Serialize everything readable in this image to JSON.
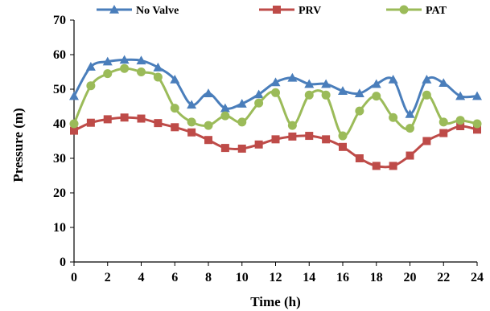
{
  "chart_data": {
    "type": "line",
    "title": "",
    "xlabel": "Time (h)",
    "ylabel": "Pressure (m)",
    "xlim": [
      0,
      24
    ],
    "ylim": [
      0,
      70
    ],
    "x_ticks": [
      0,
      2,
      4,
      6,
      8,
      10,
      12,
      14,
      16,
      18,
      20,
      22,
      24
    ],
    "y_ticks": [
      0,
      10,
      20,
      30,
      40,
      50,
      60,
      70
    ],
    "x": [
      0,
      1,
      2,
      3,
      4,
      5,
      6,
      7,
      8,
      9,
      10,
      11,
      12,
      13,
      14,
      15,
      16,
      17,
      18,
      19,
      20,
      21,
      22,
      23,
      24
    ],
    "grid": false,
    "legend_position": "top",
    "series": [
      {
        "name": "No Valve",
        "color": "#4A7EBB",
        "marker": "triangle",
        "values": [
          48.0,
          56.5,
          58.0,
          58.5,
          58.3,
          56.3,
          52.8,
          45.5,
          48.8,
          44.5,
          45.8,
          48.5,
          52.0,
          53.3,
          51.5,
          51.5,
          49.5,
          48.8,
          51.5,
          52.8,
          42.8,
          52.8,
          51.8,
          48.0,
          48.0
        ]
      },
      {
        "name": "PRV",
        "color": "#BE4B48",
        "marker": "square",
        "values": [
          38.0,
          40.3,
          41.3,
          41.8,
          41.5,
          40.2,
          39.0,
          37.5,
          35.3,
          33.0,
          32.8,
          34.0,
          35.5,
          36.3,
          36.5,
          35.5,
          33.3,
          30.0,
          27.8,
          27.8,
          30.8,
          35.0,
          37.3,
          39.3,
          38.3
        ]
      },
      {
        "name": "PAT",
        "color": "#9BBB59",
        "marker": "circle",
        "values": [
          40.0,
          51.0,
          54.5,
          56.0,
          55.0,
          53.5,
          44.5,
          40.5,
          39.5,
          42.3,
          40.5,
          46.0,
          49.0,
          39.5,
          48.3,
          48.3,
          36.5,
          43.7,
          48.0,
          41.8,
          38.7,
          48.3,
          40.5,
          41.0,
          40.0
        ]
      }
    ]
  }
}
